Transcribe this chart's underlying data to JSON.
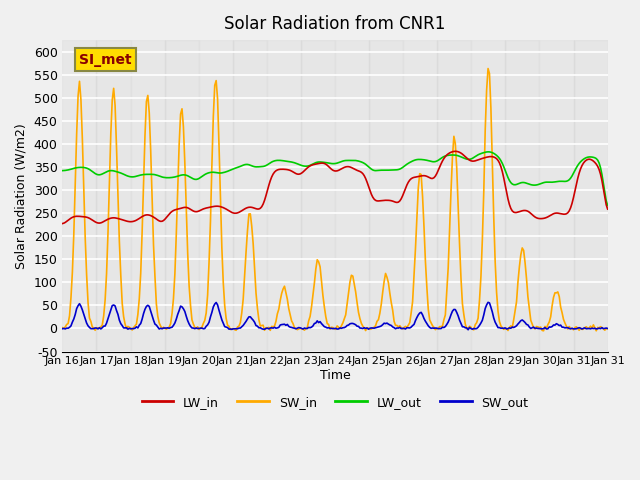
{
  "title": "Solar Radiation from CNR1",
  "ylabel": "Solar Radiation (W/m2)",
  "xlabel": "Time",
  "ylim": [
    -50,
    625
  ],
  "yticks": [
    -50,
    0,
    50,
    100,
    150,
    200,
    250,
    300,
    350,
    400,
    450,
    500,
    550,
    600
  ],
  "colors": {
    "LW_in": "#cc0000",
    "SW_in": "#ffaa00",
    "LW_out": "#00cc00",
    "SW_out": "#0000cc"
  },
  "background_color": "#e8e8e8",
  "plot_bg": "#f0f0f0",
  "band_color": "#dcdcdc",
  "si_met_box_color": "#ffdd00",
  "si_met_text_color": "#880000",
  "n_days": 16,
  "start_day": 16
}
